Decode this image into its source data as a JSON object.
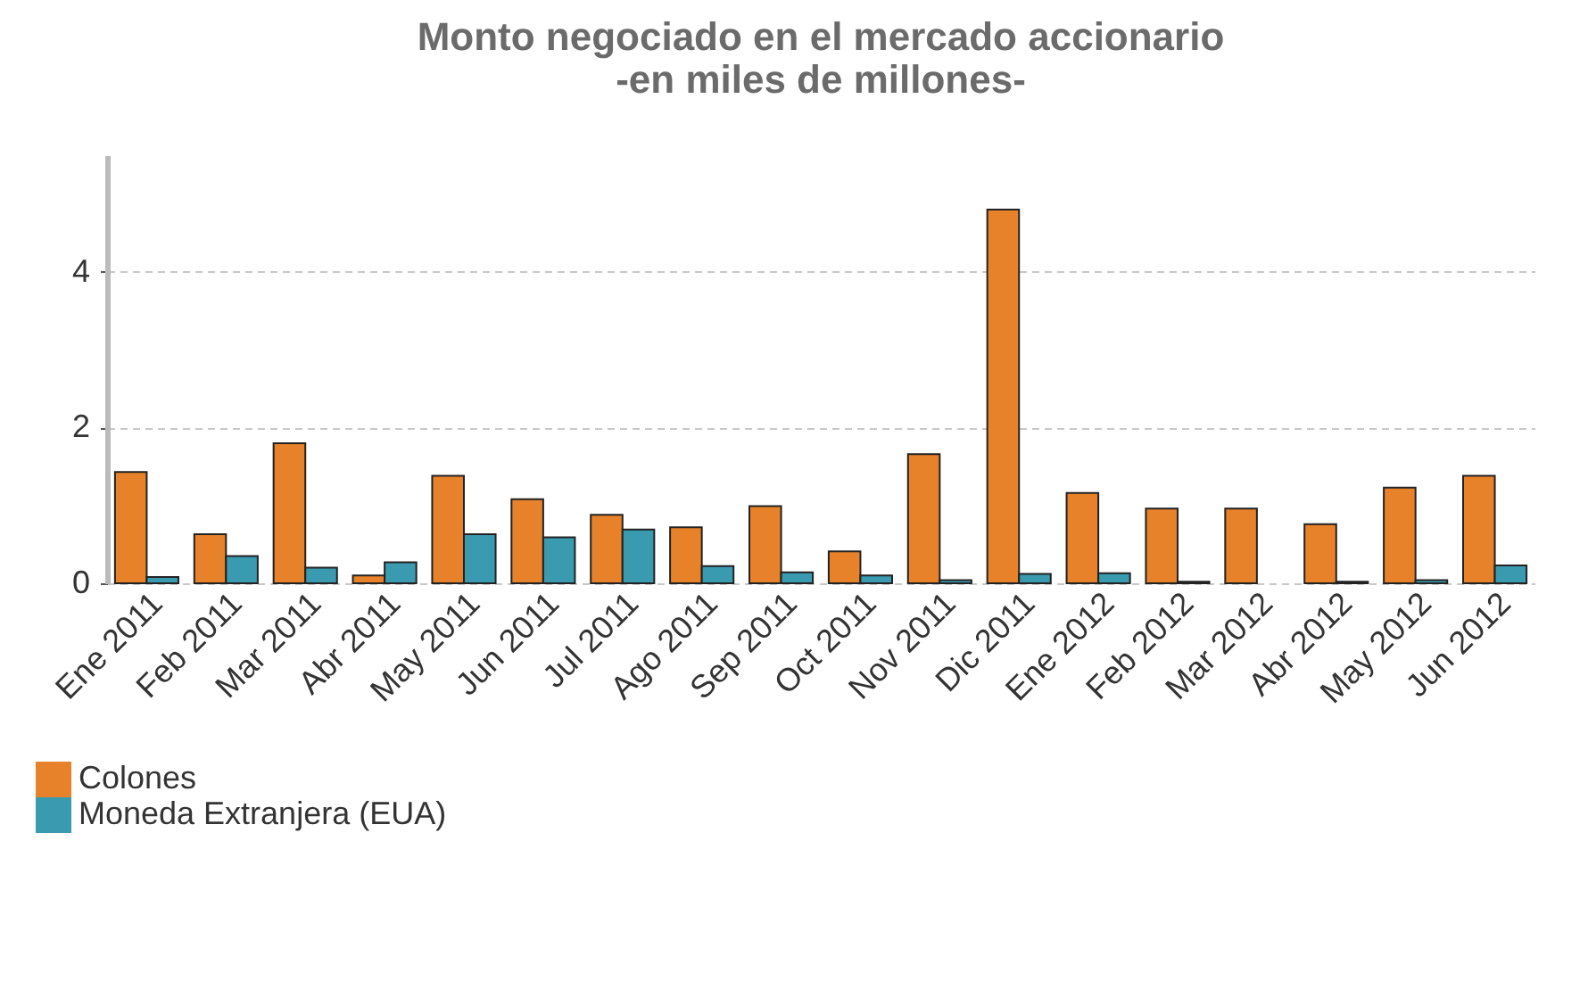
{
  "chart_data": {
    "type": "bar",
    "title": "Monto negociado en el mercado accionario\n-en miles de millones-",
    "categories": [
      "Ene 2011",
      "Feb 2011",
      "Mar 2011",
      "Abr 2011",
      "May 2011",
      "Jun 2011",
      "Jul 2011",
      "Ago 2011",
      "Sep 2011",
      "Oct 2011",
      "Nov 2011",
      "Dic 2011",
      "Ene 2012",
      "Feb 2012",
      "Mar 2012",
      "Abr 2012",
      "May 2012",
      "Jun 2012"
    ],
    "series": [
      {
        "name": "Colones",
        "color": "#e8822a",
        "values": [
          1.43,
          0.63,
          1.8,
          0.1,
          1.38,
          1.08,
          0.88,
          0.72,
          0.99,
          0.41,
          1.66,
          4.8,
          1.16,
          0.96,
          0.96,
          0.76,
          1.23,
          1.38
        ]
      },
      {
        "name": "Moneda Extranjera (EUA)",
        "color": "#3a9bb0",
        "values": [
          0.08,
          0.35,
          0.2,
          0.27,
          0.63,
          0.59,
          0.69,
          0.22,
          0.14,
          0.1,
          0.04,
          0.12,
          0.13,
          0.02,
          null,
          0.02,
          0.04,
          0.23
        ]
      }
    ],
    "ylim": [
      0,
      5.5
    ],
    "yticks": [
      0,
      2,
      4
    ],
    "grid": "y",
    "legend": "bottom left"
  }
}
